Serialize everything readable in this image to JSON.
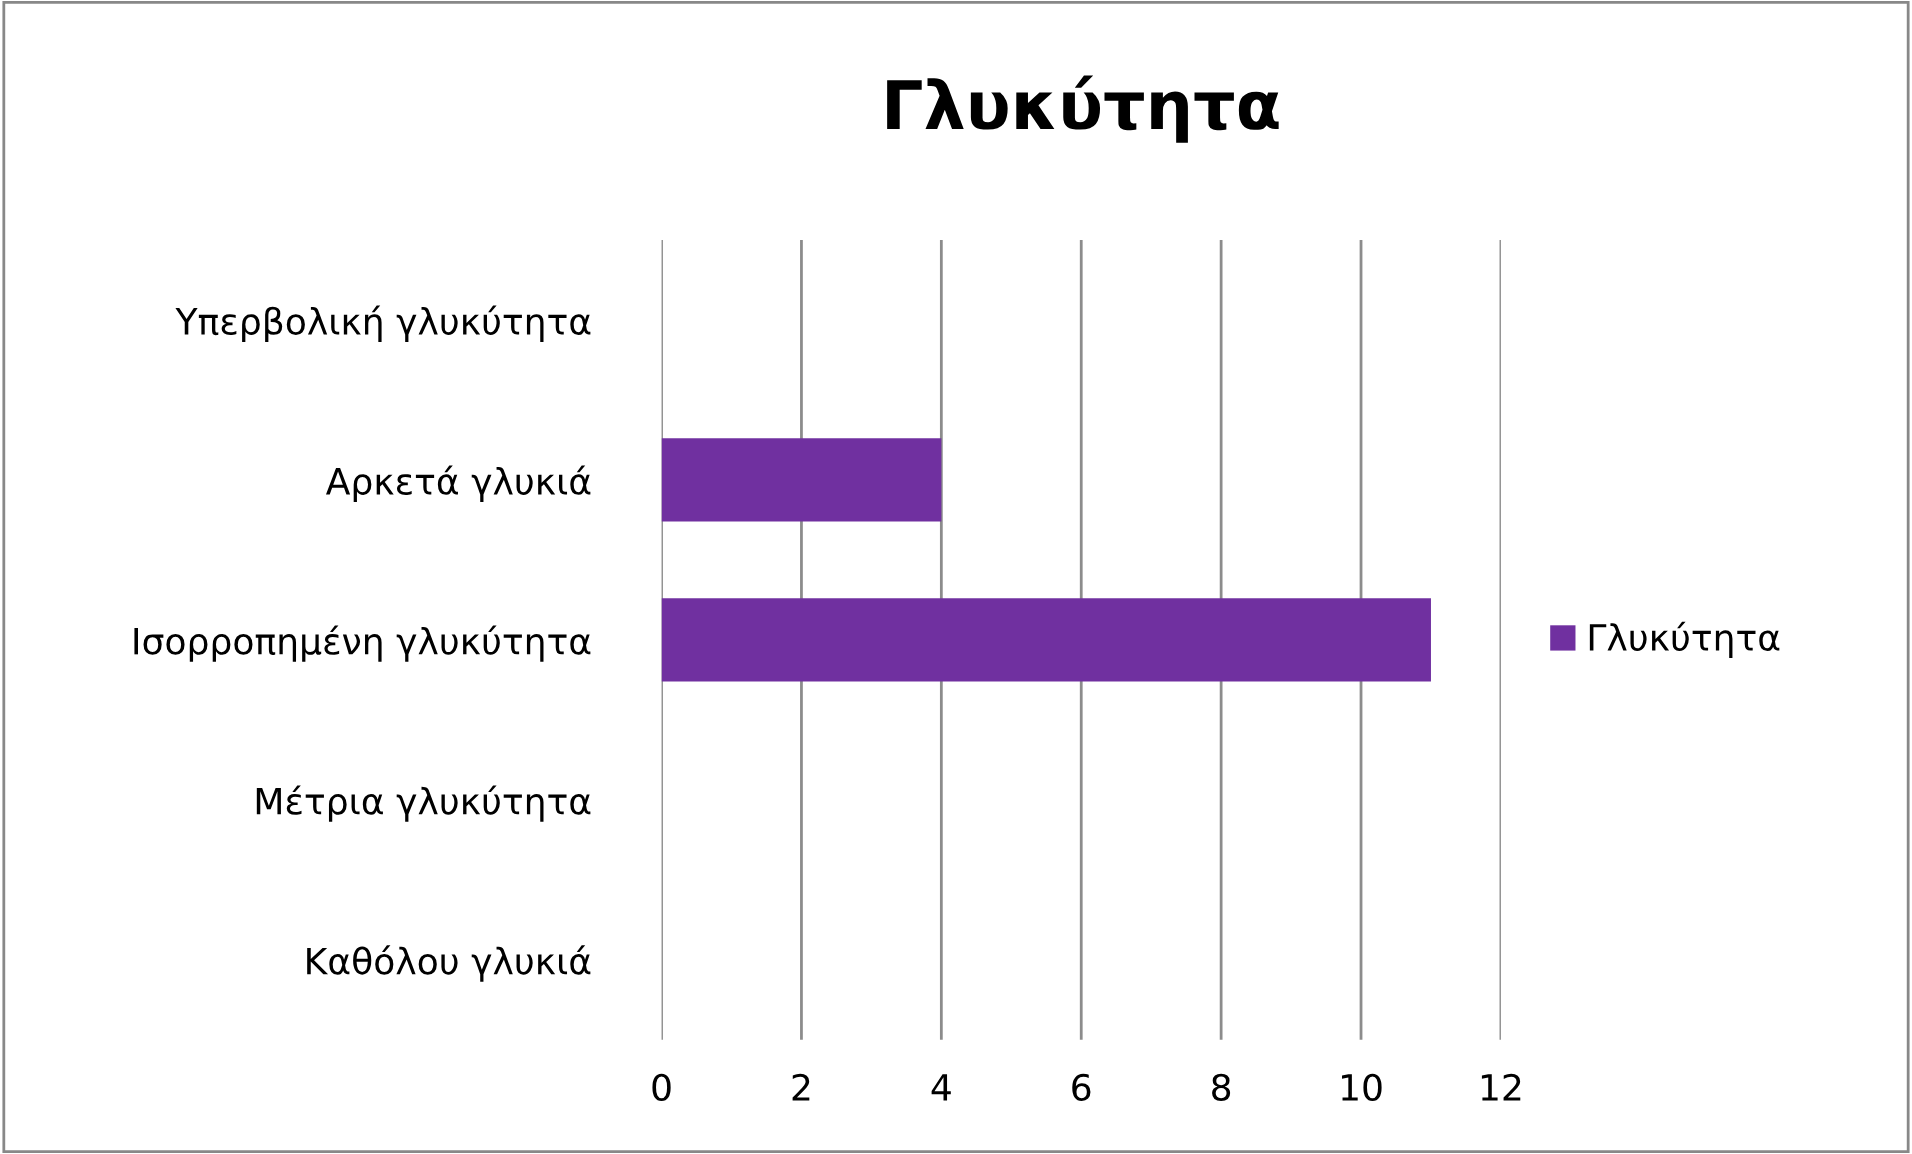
{
  "chart_data": {
    "type": "bar",
    "orientation": "horizontal",
    "title": "Γλυκύτητα",
    "categories": [
      "Υπερβολική γλυκύτητα",
      "Αρκετά γλυκιά",
      "Ισορροπημένη γλυκύτητα",
      "Μέτρια γλυκύτητα",
      "Καθόλου γλυκιά"
    ],
    "series": [
      {
        "name": "Γλυκύτητα",
        "color": "#7030a0",
        "values": [
          0,
          4,
          11,
          0,
          0
        ]
      }
    ],
    "xlim": [
      0,
      12
    ],
    "xticks": [
      0,
      2,
      4,
      6,
      8,
      10,
      12
    ],
    "grid": "x",
    "legend": "right"
  }
}
